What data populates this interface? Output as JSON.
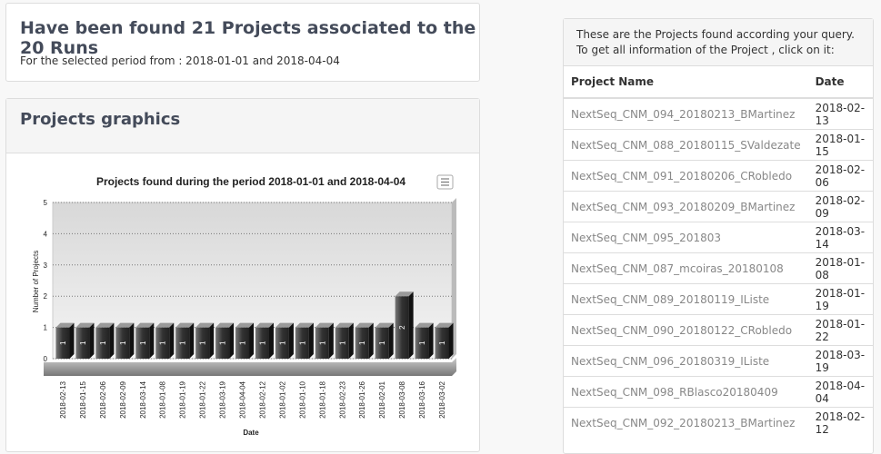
{
  "header": {
    "title": "Have been found 21 Projects associated to the 20 Runs",
    "subtitle": "For the selected period from : 2018-01-01 and 2018-04-04"
  },
  "graphics": {
    "title": "Projects graphics"
  },
  "chart_data": {
    "type": "bar3d",
    "title": "Projects found during the period 2018-01-01 and 2018-04-04",
    "x_label": "Date",
    "y_label": "Number of Projects",
    "categories": [
      "2018-02-13",
      "2018-01-15",
      "2018-02-06",
      "2018-02-09",
      "2018-03-14",
      "2018-01-08",
      "2018-01-19",
      "2018-01-22",
      "2018-03-19",
      "2018-04-04",
      "2018-02-12",
      "2018-01-02",
      "2018-01-10",
      "2018-01-18",
      "2018-02-23",
      "2018-01-26",
      "2018-02-01",
      "2018-03-08",
      "2018-03-16",
      "2018-03-02"
    ],
    "values": [
      1,
      1,
      1,
      1,
      1,
      1,
      1,
      1,
      1,
      1,
      1,
      1,
      1,
      1,
      1,
      1,
      1,
      2,
      1,
      1
    ],
    "color": "#444444",
    "ylim": [
      0,
      5
    ],
    "yticks": [
      0,
      1,
      2,
      3,
      4,
      5
    ],
    "grid": true
  },
  "table": {
    "intro": "These are the Projects found according your query. To get all information of the Project , click on it:",
    "columns": [
      "Project Name",
      "Date"
    ],
    "rows": [
      [
        "NextSeq_CNM_094_20180213_BMartinez",
        "2018-02-13"
      ],
      [
        "NextSeq_CNM_088_20180115_SValdezate",
        "2018-01-15"
      ],
      [
        "NextSeq_CNM_091_20180206_CRobledo",
        "2018-02-06"
      ],
      [
        "NextSeq_CNM_093_20180209_BMartinez",
        "2018-02-09"
      ],
      [
        "NextSeq_CNM_095_201803",
        "2018-03-14"
      ],
      [
        "NextSeq_CNM_087_mcoiras_20180108",
        "2018-01-08"
      ],
      [
        "NextSeq_CNM_089_20180119_IListe",
        "2018-01-19"
      ],
      [
        "NextSeq_CNM_090_20180122_CRobledo",
        "2018-01-22"
      ],
      [
        "NextSeq_CNM_096_20180319_IListe",
        "2018-03-19"
      ],
      [
        "NextSeq_CNM_098_RBlasco20180409",
        "2018-04-04"
      ],
      [
        "NextSeq_CNM_092_20180213_BMartinez",
        "2018-02-12"
      ]
    ]
  }
}
